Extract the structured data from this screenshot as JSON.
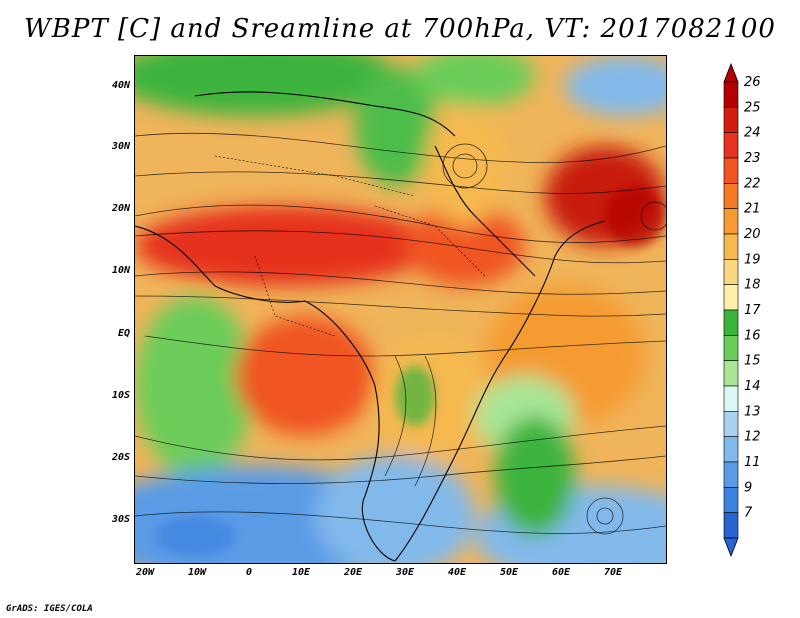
{
  "title": "WBPT [C] and Sreamline at 700hPa, VT: 2017082100",
  "footer": "GrADS: IGES/COLA",
  "lat_labels": [
    "40N",
    "30N",
    "20N",
    "10N",
    "EQ",
    "10S",
    "20S",
    "30S"
  ],
  "lon_labels": [
    "20W",
    "10W",
    "0",
    "10E",
    "20E",
    "30E",
    "40E",
    "50E",
    "60E",
    "70E"
  ],
  "colorbar": {
    "labels": [
      "26",
      "25",
      "24",
      "23",
      "22",
      "21",
      "20",
      "19",
      "18",
      "17",
      "16",
      "15",
      "14",
      "13",
      "12",
      "11",
      "9",
      "7"
    ],
    "colors": [
      "#b40000",
      "#d21e0a",
      "#e6321e",
      "#f05523",
      "#f57a28",
      "#f59b32",
      "#f5b950",
      "#fad782",
      "#fff0aa",
      "#3cb43c",
      "#6ccd5a",
      "#a8e696",
      "#dcf5f5",
      "#aad2f0",
      "#82b9eb",
      "#5a9be6",
      "#3c82e1",
      "#2864d2"
    ]
  }
}
